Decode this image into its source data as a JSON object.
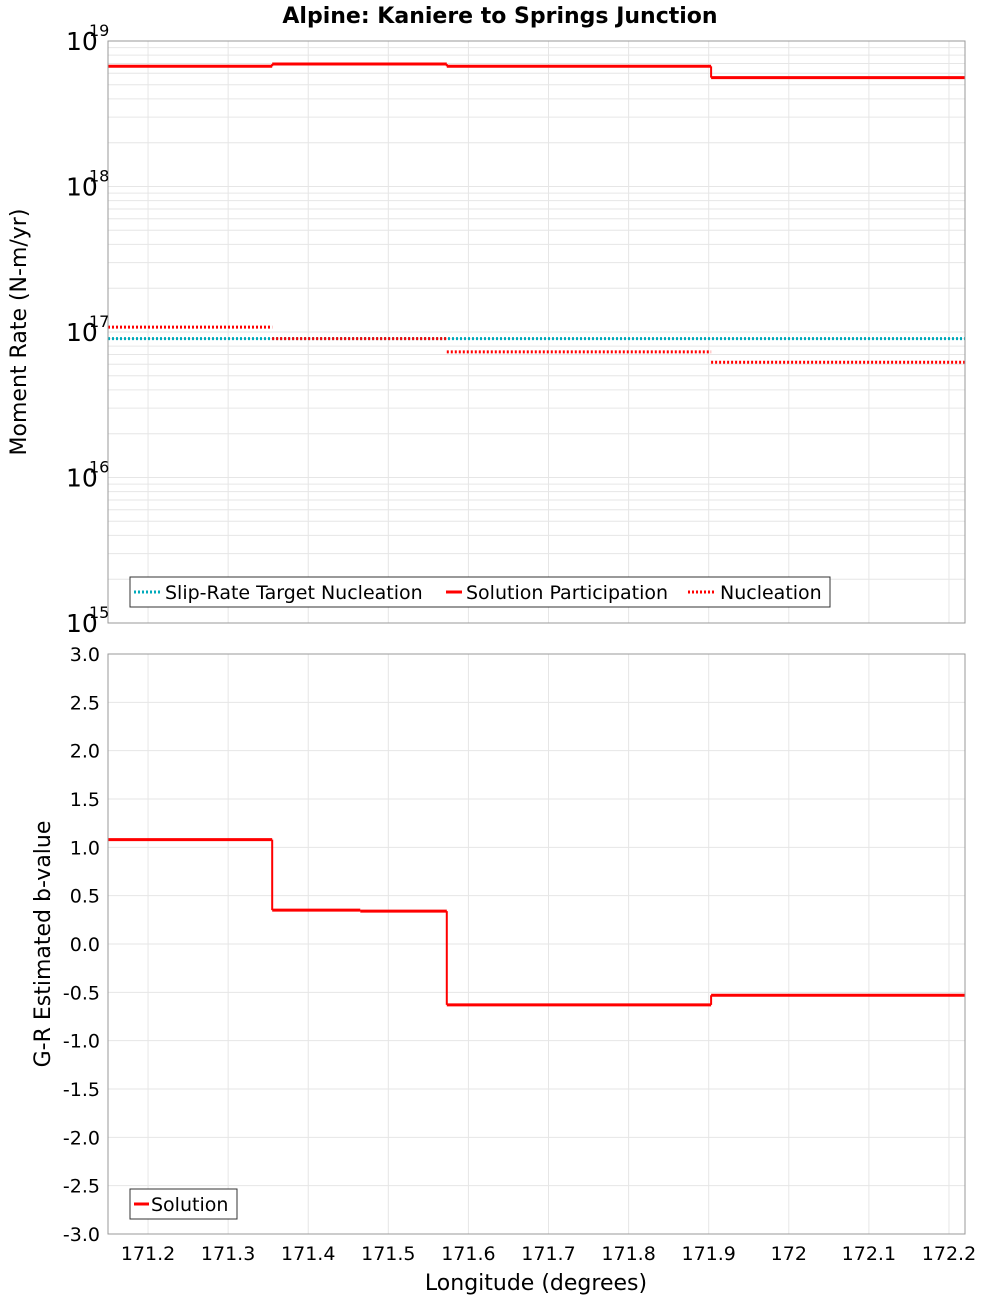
{
  "title": "Alpine: Kaniere to Springs Junction",
  "xlabel": "Longitude (degrees)",
  "x_ticks": [
    "171.2",
    "171.3",
    "171.4",
    "171.5",
    "171.6",
    "171.7",
    "171.8",
    "171.9",
    "172",
    "172.1",
    "172.2"
  ],
  "colors": {
    "solution": "#ff0000",
    "target": "#00aabb",
    "nucleation": "#ff0000",
    "grid": "#e6e6e6",
    "frame": "#999999"
  },
  "chart_data": [
    {
      "type": "line",
      "step": true,
      "ylabel": "Moment Rate (N-m/yr)",
      "yscale": "log",
      "ylim": [
        1000000000000000.0,
        1e+19
      ],
      "xlim": [
        171.15,
        172.22
      ],
      "y_ticks": [
        {
          "base": "10",
          "exp": "15"
        },
        {
          "base": "10",
          "exp": "16"
        },
        {
          "base": "10",
          "exp": "17"
        },
        {
          "base": "10",
          "exp": "18"
        },
        {
          "base": "10",
          "exp": "19"
        }
      ],
      "series": [
        {
          "name": "Slip-Rate Target Nucleation",
          "style": "dotted",
          "color": "#00aabb",
          "segments": [
            {
              "x0": 171.15,
              "x1": 172.22,
              "y": 9e+16
            }
          ]
        },
        {
          "name": "Solution Participation",
          "style": "solid",
          "color": "#ff0000",
          "segments": [
            {
              "x0": 171.15,
              "x1": 171.355,
              "y": 6.7e+18
            },
            {
              "x0": 171.355,
              "x1": 171.573,
              "y": 6.95e+18
            },
            {
              "x0": 171.573,
              "x1": 171.903,
              "y": 6.7e+18
            },
            {
              "x0": 171.903,
              "x1": 172.22,
              "y": 5.6e+18
            }
          ]
        },
        {
          "name": "Nucleation",
          "style": "dotted",
          "color": "#ff0000",
          "segments": [
            {
              "x0": 171.15,
              "x1": 171.355,
              "y": 1.08e+17
            },
            {
              "x0": 171.355,
              "x1": 171.573,
              "y": 9e+16
            },
            {
              "x0": 171.573,
              "x1": 171.903,
              "y": 7.3e+16
            },
            {
              "x0": 171.903,
              "x1": 172.22,
              "y": 6.2e+16
            }
          ]
        }
      ],
      "legend": [
        "Slip-Rate Target Nucleation",
        "Solution Participation",
        "Nucleation"
      ]
    },
    {
      "type": "line",
      "step": true,
      "ylabel": "G-R Estimated b-value",
      "ylim": [
        -3.0,
        3.0
      ],
      "xlim": [
        171.15,
        172.22
      ],
      "y_ticks": [
        "-3.0",
        "-2.5",
        "-2.0",
        "-1.5",
        "-1.0",
        "-0.5",
        "0.0",
        "0.5",
        "1.0",
        "1.5",
        "2.0",
        "2.5",
        "3.0"
      ],
      "series": [
        {
          "name": "Solution",
          "style": "solid",
          "color": "#ff0000",
          "segments": [
            {
              "x0": 171.15,
              "x1": 171.355,
              "y": 1.08
            },
            {
              "x0": 171.355,
              "x1": 171.465,
              "y": 0.35
            },
            {
              "x0": 171.465,
              "x1": 171.573,
              "y": 0.34
            },
            {
              "x0": 171.573,
              "x1": 171.903,
              "y": -0.63
            },
            {
              "x0": 171.903,
              "x1": 172.22,
              "y": -0.53
            }
          ]
        }
      ],
      "legend": [
        "Solution"
      ]
    }
  ]
}
